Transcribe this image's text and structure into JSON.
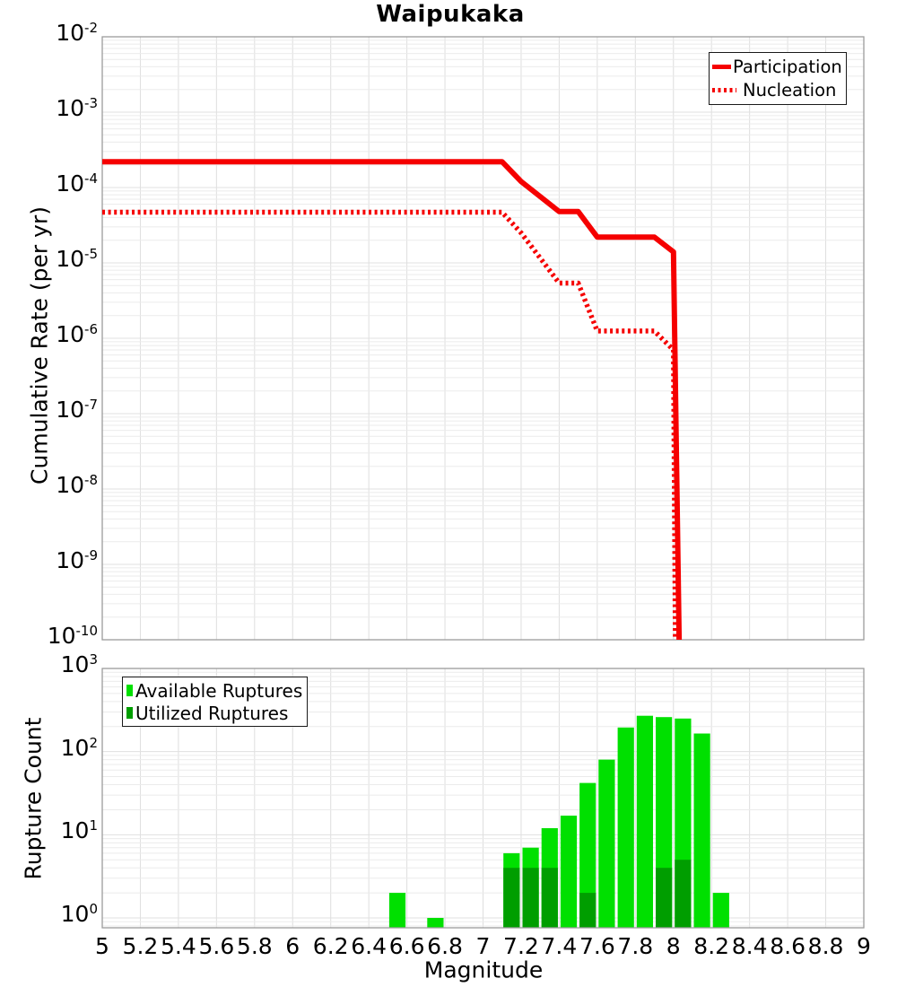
{
  "colors": {
    "line_red": "#f50000",
    "available_green": "#00e000",
    "utilized_green": "#009e00",
    "grid_vertical": "#dedede",
    "grid_minor": "#ebebeb",
    "grid_decade": "#e0e0e0",
    "panel_border": "#9c9c9c",
    "legend_border": "#1a1a1a"
  },
  "chart_data": [
    {
      "type": "line",
      "title": "Waipukaka",
      "ylabel": "Cumulative Rate (per yr)",
      "xlabel": "",
      "xlim": [
        5,
        9
      ],
      "ylim": [
        1e-10,
        0.01
      ],
      "x_grid_step": 0.2,
      "grid": true,
      "y_scale": "log",
      "y_tick_exponents": [
        -2,
        -3,
        -4,
        -5,
        -6,
        -7,
        -8,
        -9,
        -10
      ],
      "x_tick_labels_visible": false,
      "legend": {
        "position": "top-right",
        "entries": [
          {
            "label": "Participation",
            "style": "solid",
            "color": "#f50000"
          },
          {
            "label": "Nucleation",
            "style": "dotted",
            "color": "#f50000"
          }
        ]
      },
      "series": [
        {
          "name": "Nucleation",
          "style": "dotted",
          "color": "#f50000",
          "points": [
            [
              5.0,
              4.7e-05
            ],
            [
              7.1,
              4.7e-05
            ],
            [
              7.2,
              2.5e-05
            ],
            [
              7.4,
              5.4e-06
            ],
            [
              7.5,
              5.4e-06
            ],
            [
              7.6,
              1.25e-06
            ],
            [
              7.9,
              1.25e-06
            ],
            [
              8.0,
              7e-07
            ],
            [
              8.01,
              1e-10
            ]
          ]
        },
        {
          "name": "Participation",
          "style": "solid",
          "color": "#f50000",
          "points": [
            [
              5.0,
              0.00022
            ],
            [
              7.1,
              0.00022
            ],
            [
              7.2,
              0.00012
            ],
            [
              7.4,
              4.8e-05
            ],
            [
              7.5,
              4.8e-05
            ],
            [
              7.6,
              2.2e-05
            ],
            [
              7.9,
              2.2e-05
            ],
            [
              8.0,
              1.4e-05
            ],
            [
              8.03,
              1e-10
            ]
          ]
        }
      ]
    },
    {
      "type": "bar",
      "title": "",
      "ylabel": "Rupture Count",
      "xlabel": "Magnitude",
      "xlim": [
        5,
        9
      ],
      "ylim": [
        0.76,
        1000
      ],
      "x_grid_step": 0.2,
      "grid": true,
      "y_scale": "log",
      "y_tick_exponents": [
        3,
        2,
        1,
        0
      ],
      "bin_width": 0.1,
      "x_ticks": [
        {
          "value": 5,
          "label": "5"
        },
        {
          "value": 5.2,
          "label": "5.2"
        },
        {
          "value": 5.4,
          "label": "5.4"
        },
        {
          "value": 5.6,
          "label": "5.6"
        },
        {
          "value": 5.8,
          "label": "5.8"
        },
        {
          "value": 6,
          "label": "6"
        },
        {
          "value": 6.2,
          "label": "6.2"
        },
        {
          "value": 6.4,
          "label": "6.4"
        },
        {
          "value": 6.6,
          "label": "6.6"
        },
        {
          "value": 6.8,
          "label": "6.8"
        },
        {
          "value": 7,
          "label": "7"
        },
        {
          "value": 7.2,
          "label": "7.2"
        },
        {
          "value": 7.4,
          "label": "7.4"
        },
        {
          "value": 7.6,
          "label": "7.6"
        },
        {
          "value": 7.8,
          "label": "7.8"
        },
        {
          "value": 8,
          "label": "8"
        },
        {
          "value": 8.2,
          "label": "8.2"
        },
        {
          "value": 8.4,
          "label": "8.4"
        },
        {
          "value": 8.6,
          "label": "8.6"
        },
        {
          "value": 8.8,
          "label": "8.8"
        },
        {
          "value": 9,
          "label": "9"
        }
      ],
      "legend": {
        "position": "top-left",
        "entries": [
          {
            "label": "Available Ruptures",
            "color": "#00e000"
          },
          {
            "label": "Utilized Ruptures",
            "color": "#009e00"
          }
        ]
      },
      "series": [
        {
          "name": "Available Ruptures",
          "color": "#00e000",
          "bins": [
            [
              6.5,
              2
            ],
            [
              6.7,
              1
            ],
            [
              7.1,
              6
            ],
            [
              7.2,
              7
            ],
            [
              7.3,
              12
            ],
            [
              7.4,
              17
            ],
            [
              7.5,
              42
            ],
            [
              7.6,
              80
            ],
            [
              7.7,
              195
            ],
            [
              7.8,
              270
            ],
            [
              7.9,
              260
            ],
            [
              8.0,
              250
            ],
            [
              8.1,
              165
            ],
            [
              8.2,
              2
            ]
          ]
        },
        {
          "name": "Utilized Ruptures",
          "color": "#009e00",
          "bins": [
            [
              7.1,
              4
            ],
            [
              7.2,
              4
            ],
            [
              7.3,
              4
            ],
            [
              7.5,
              2
            ],
            [
              7.9,
              4
            ],
            [
              8.0,
              5
            ]
          ]
        }
      ]
    }
  ]
}
